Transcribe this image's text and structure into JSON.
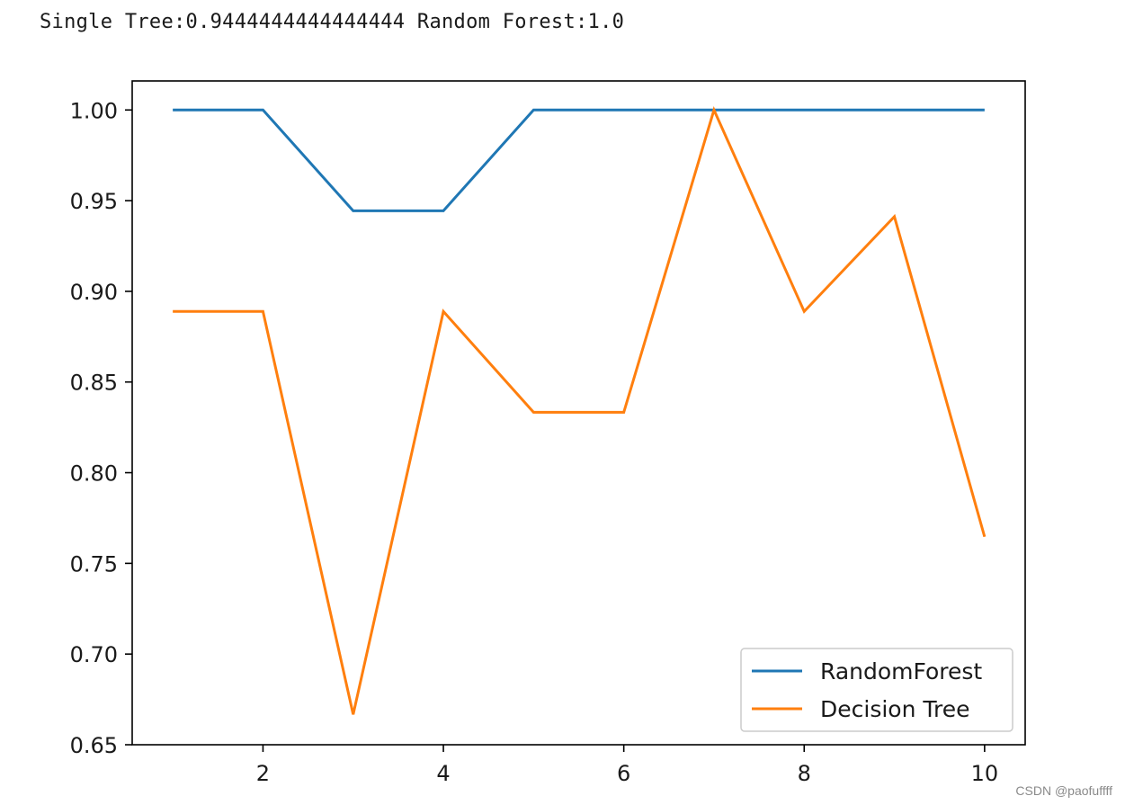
{
  "console": {
    "output": "Single Tree:0.9444444444444444 Random Forest:1.0"
  },
  "watermark": "CSDN @paofuffff",
  "chart_data": {
    "type": "line",
    "title": "",
    "xlabel": "",
    "ylabel": "",
    "x": [
      1,
      2,
      3,
      4,
      5,
      6,
      7,
      8,
      9,
      10
    ],
    "xlim": [
      0.55,
      10.45
    ],
    "ylim": [
      0.65,
      1.016
    ],
    "xticks": [
      2,
      4,
      6,
      8,
      10
    ],
    "xtick_labels": [
      "2",
      "4",
      "6",
      "8",
      "10"
    ],
    "yticks": [
      0.65,
      0.7,
      0.75,
      0.8,
      0.85,
      0.9,
      0.95,
      1.0
    ],
    "ytick_labels": [
      "0.65",
      "0.70",
      "0.75",
      "0.80",
      "0.85",
      "0.90",
      "0.95",
      "1.00"
    ],
    "grid": false,
    "legend_position": "lower-right",
    "series": [
      {
        "name": "RandomForest",
        "color": "#1f77b4",
        "values": [
          1.0,
          1.0,
          0.9444,
          0.9444,
          1.0,
          1.0,
          1.0,
          1.0,
          1.0,
          1.0
        ]
      },
      {
        "name": "Decision Tree",
        "color": "#ff7f0e",
        "values": [
          0.8889,
          0.8889,
          0.6667,
          0.8889,
          0.8333,
          0.8333,
          1.0,
          0.8889,
          0.9412,
          0.7647
        ]
      }
    ]
  }
}
